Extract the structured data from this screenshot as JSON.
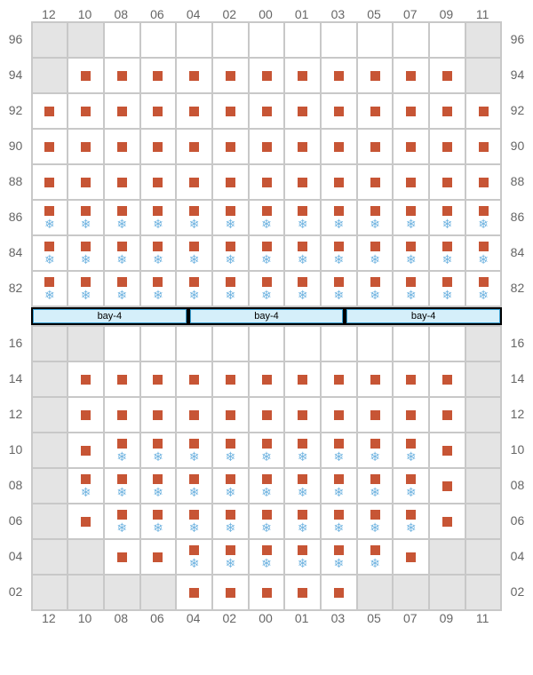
{
  "columns": [
    "12",
    "10",
    "08",
    "06",
    "04",
    "02",
    "00",
    "01",
    "03",
    "05",
    "07",
    "09",
    "11"
  ],
  "marker_color": "#c75535",
  "snow_glyph": "❄",
  "snow_color": "#6fb3e0",
  "blocked_bg": "#e4e4e4",
  "cell_bg": "#ffffff",
  "grid_border": "#c8c8c8",
  "label_color": "#666666",
  "label_fontsize": 14,
  "hatch_bar_bg": "#000000",
  "hatch_fill": "#d5effa",
  "hatch_border": "#3b9fd1",
  "hatches": [
    "bay-4",
    "bay-4",
    "bay-4"
  ],
  "upper": {
    "rows": [
      "96",
      "94",
      "92",
      "90",
      "88",
      "86",
      "84",
      "82"
    ],
    "cells": [
      [
        "B",
        "B",
        "E",
        "E",
        "E",
        "E",
        "E",
        "E",
        "E",
        "E",
        "E",
        "E",
        "B"
      ],
      [
        "B",
        "M",
        "M",
        "M",
        "M",
        "M",
        "M",
        "M",
        "M",
        "M",
        "M",
        "M",
        "B"
      ],
      [
        "M",
        "M",
        "M",
        "M",
        "M",
        "M",
        "M",
        "M",
        "M",
        "M",
        "M",
        "M",
        "M"
      ],
      [
        "M",
        "M",
        "M",
        "M",
        "M",
        "M",
        "M",
        "M",
        "M",
        "M",
        "M",
        "M",
        "M"
      ],
      [
        "M",
        "M",
        "M",
        "M",
        "M",
        "M",
        "M",
        "M",
        "M",
        "M",
        "M",
        "M",
        "M"
      ],
      [
        "MS",
        "MS",
        "MS",
        "MS",
        "MS",
        "MS",
        "MS",
        "MS",
        "MS",
        "MS",
        "MS",
        "MS",
        "MS"
      ],
      [
        "MS",
        "MS",
        "MS",
        "MS",
        "MS",
        "MS",
        "MS",
        "MS",
        "MS",
        "MS",
        "MS",
        "MS",
        "MS"
      ],
      [
        "MS",
        "MS",
        "MS",
        "MS",
        "MS",
        "MS",
        "MS",
        "MS",
        "MS",
        "MS",
        "MS",
        "MS",
        "MS"
      ]
    ]
  },
  "lower": {
    "rows": [
      "16",
      "14",
      "12",
      "10",
      "08",
      "06",
      "04",
      "02"
    ],
    "cells": [
      [
        "B",
        "B",
        "E",
        "E",
        "E",
        "E",
        "E",
        "E",
        "E",
        "E",
        "E",
        "E",
        "B"
      ],
      [
        "B",
        "M",
        "M",
        "M",
        "M",
        "M",
        "M",
        "M",
        "M",
        "M",
        "M",
        "M",
        "B"
      ],
      [
        "B",
        "M",
        "M",
        "M",
        "M",
        "M",
        "M",
        "M",
        "M",
        "M",
        "M",
        "M",
        "B"
      ],
      [
        "B",
        "M",
        "MS",
        "MS",
        "MS",
        "MS",
        "MS",
        "MS",
        "MS",
        "MS",
        "MS",
        "M",
        "B"
      ],
      [
        "B",
        "MS",
        "MS",
        "MS",
        "MS",
        "MS",
        "MS",
        "MS",
        "MS",
        "MS",
        "MS",
        "M",
        "B"
      ],
      [
        "B",
        "M",
        "MS",
        "MS",
        "MS",
        "MS",
        "MS",
        "MS",
        "MS",
        "MS",
        "MS",
        "M",
        "B"
      ],
      [
        "B",
        "B",
        "M",
        "M",
        "MS",
        "MS",
        "MS",
        "MS",
        "MS",
        "MS",
        "M",
        "B",
        "B"
      ],
      [
        "B",
        "B",
        "B",
        "B",
        "M",
        "M",
        "M",
        "M",
        "M",
        "B",
        "B",
        "B",
        "B"
      ]
    ]
  }
}
